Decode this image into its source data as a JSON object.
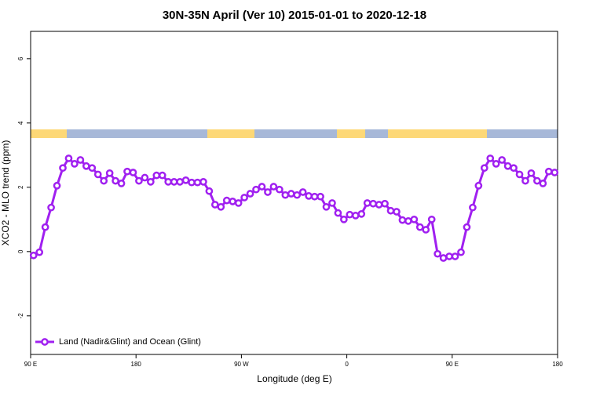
{
  "chart_data": {
    "type": "line",
    "title": "30N-35N April (Ver 10)   2015-01-01 to 2020-12-18",
    "x_label": "Longitude (deg E)",
    "y_label": "XCO2 - MLO trend (ppm)",
    "x": [
      92.5,
      97.5,
      102.5,
      107.5,
      112.5,
      117.5,
      122.5,
      127.5,
      132.5,
      137.5,
      142.5,
      147.5,
      152.5,
      157.5,
      162.5,
      167.5,
      172.5,
      177.5,
      182.5,
      187.5,
      192.5,
      197.5,
      202.5,
      207.5,
      212.5,
      217.5,
      222.5,
      227.5,
      232.5,
      237.5,
      242.5,
      247.5,
      252.5,
      257.5,
      262.5,
      267.5,
      272.5,
      277.5,
      282.5,
      287.5,
      292.5,
      297.5,
      302.5,
      307.5,
      312.5,
      317.5,
      322.5,
      327.5,
      332.5,
      337.5,
      342.5,
      347.5,
      352.5,
      357.5,
      362.5,
      367.5,
      372.5,
      377.5,
      382.5,
      387.5,
      392.5,
      397.5,
      402.5,
      407.5,
      412.5,
      417.5,
      422.5,
      427.5,
      432.5,
      437.5,
      442.5,
      447.5,
      452.5,
      457.5,
      462.5,
      467.5,
      472.5,
      477.5,
      482.5,
      487.5,
      492.5,
      497.5,
      502.5,
      507.5,
      512.5,
      517.5,
      522.5,
      527.5,
      532.5,
      537.5
    ],
    "series": [
      {
        "name": "Land (Nadir&Glint) and Ocean (Glint)",
        "color": "#a020f0",
        "values": [
          -0.12,
          -0.02,
          0.76,
          1.37,
          2.05,
          2.6,
          2.9,
          2.73,
          2.85,
          2.66,
          2.6,
          2.4,
          2.2,
          2.44,
          2.2,
          2.12,
          2.49,
          2.46,
          2.2,
          2.3,
          2.17,
          2.37,
          2.37,
          2.17,
          2.17,
          2.17,
          2.22,
          2.15,
          2.15,
          2.17,
          1.88,
          1.46,
          1.39,
          1.59,
          1.56,
          1.51,
          1.68,
          1.8,
          1.93,
          2.02,
          1.85,
          2.02,
          1.93,
          1.76,
          1.8,
          1.76,
          1.85,
          1.73,
          1.71,
          1.71,
          1.39,
          1.51,
          1.2,
          1.0,
          1.15,
          1.12,
          1.17,
          1.51,
          1.49,
          1.46,
          1.49,
          1.27,
          1.24,
          0.98,
          0.95,
          1.0,
          0.76,
          0.68,
          1.0,
          -0.07,
          -0.2,
          -0.15,
          -0.15,
          -0.02,
          0.76,
          1.37,
          2.05,
          2.6,
          2.9,
          2.73,
          2.85,
          2.66,
          2.6,
          2.4,
          2.2,
          2.44,
          2.2,
          2.12,
          2.49,
          2.46
        ]
      }
    ],
    "xlim": [
      90,
      540
    ],
    "xticks": [
      {
        "value": 90,
        "label": "90 E"
      },
      180,
      {
        "value": 270,
        "label": "90 W"
      },
      {
        "value": 360,
        "label": "0"
      },
      {
        "value": 450,
        "label": "90 E"
      },
      {
        "value": 540,
        "label": "180"
      }
    ],
    "ylim": [
      -3.2,
      6.85
    ],
    "yticks": [
      -2,
      0,
      2,
      4,
      6
    ],
    "grid": false,
    "legend_position": "bottom-left"
  }
}
